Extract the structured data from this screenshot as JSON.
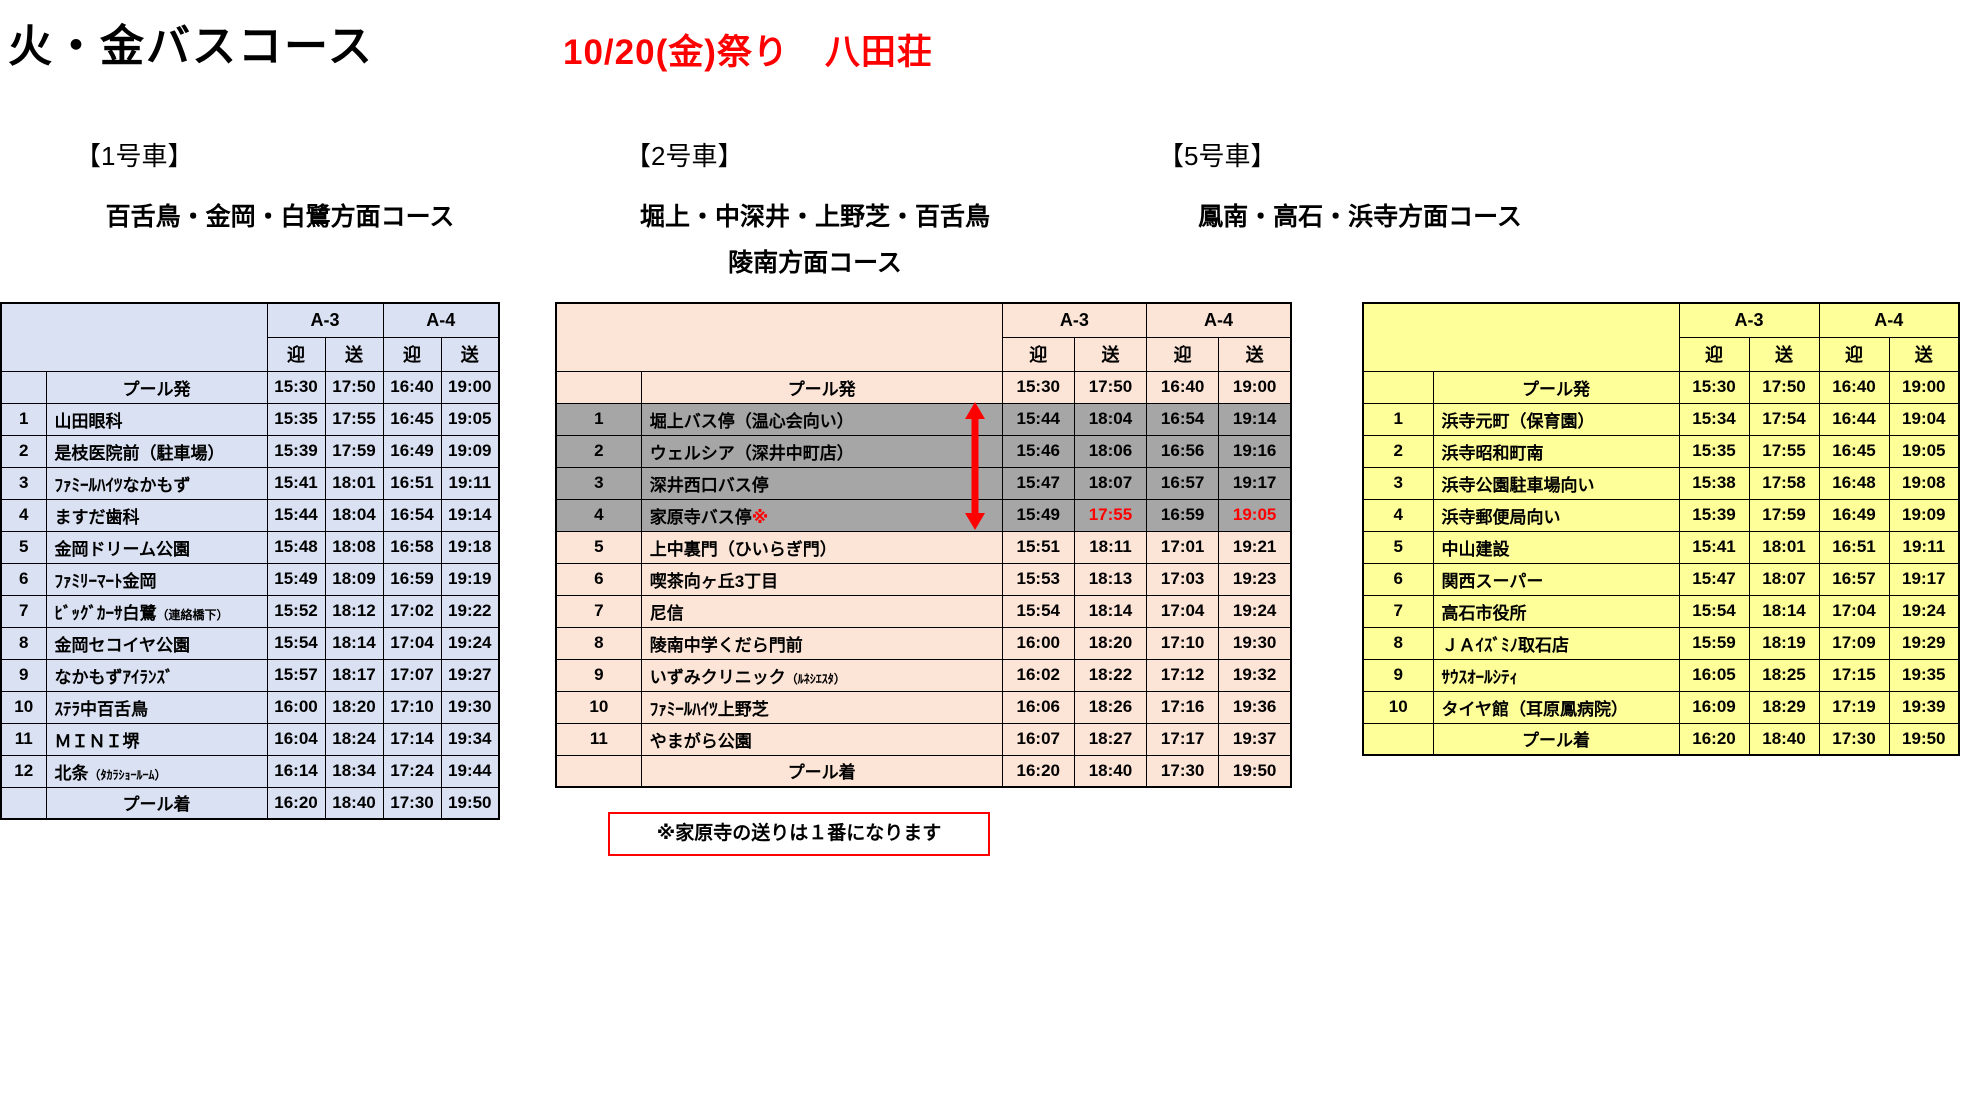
{
  "page": {
    "title": "火・金バスコース",
    "subtitle": "10/20(金)祭り　八田荘"
  },
  "colors": {
    "table1_bg": "#D9E1F2",
    "table2_bg": "#FCE4D6",
    "table3_bg": "#FFFF99",
    "gray_row": "#A6A6A6",
    "accent_red": "#FF0000"
  },
  "columns": {
    "a3": "A-3",
    "a4": "A-4",
    "pickup": "迎",
    "dropoff": "送"
  },
  "note": "※家原寺の送りは１番になります",
  "buses": [
    {
      "label": "【1号車】",
      "course": [
        "百舌鳥・金岡・白鷺方面コース"
      ],
      "rows": [
        {
          "no": "",
          "name": "プール発",
          "type": "pool",
          "times": [
            "15:30",
            "17:50",
            "16:40",
            "19:00"
          ]
        },
        {
          "no": "1",
          "name": "山田眼科",
          "times": [
            "15:35",
            "17:55",
            "16:45",
            "19:05"
          ]
        },
        {
          "no": "2",
          "name": "是枝医院前（駐車場）",
          "times": [
            "15:39",
            "17:59",
            "16:49",
            "19:09"
          ]
        },
        {
          "no": "3",
          "name": "ﾌｧﾐｰﾙﾊｲﾂなかもず",
          "times": [
            "15:41",
            "18:01",
            "16:51",
            "19:11"
          ]
        },
        {
          "no": "4",
          "name": "ますだ歯科",
          "times": [
            "15:44",
            "18:04",
            "16:54",
            "19:14"
          ]
        },
        {
          "no": "5",
          "name": "金岡ドリーム公園",
          "times": [
            "15:48",
            "18:08",
            "16:58",
            "19:18"
          ]
        },
        {
          "no": "6",
          "name": "ﾌｧﾐﾘｰﾏｰﾄ金岡",
          "times": [
            "15:49",
            "18:09",
            "16:59",
            "19:19"
          ]
        },
        {
          "no": "7",
          "name": "ﾋﾞｯｸﾞｶｰｻ白鷺",
          "small": "（連絡橋下）",
          "times": [
            "15:52",
            "18:12",
            "17:02",
            "19:22"
          ]
        },
        {
          "no": "8",
          "name": "金岡セコイヤ公園",
          "times": [
            "15:54",
            "18:14",
            "17:04",
            "19:24"
          ]
        },
        {
          "no": "9",
          "name": "なかもずｱｲﾗﾝｽﾞ",
          "times": [
            "15:57",
            "18:17",
            "17:07",
            "19:27"
          ]
        },
        {
          "no": "10",
          "name": "ｽﾃﾗ中百舌鳥",
          "times": [
            "16:00",
            "18:20",
            "17:10",
            "19:30"
          ]
        },
        {
          "no": "11",
          "name": "ＭＩＮＩ堺",
          "times": [
            "16:04",
            "18:24",
            "17:14",
            "19:34"
          ]
        },
        {
          "no": "12",
          "name": "北条",
          "small": "（ﾀｶﾗｼｮｰﾙｰﾑ）",
          "times": [
            "16:14",
            "18:34",
            "17:24",
            "19:44"
          ]
        },
        {
          "no": "",
          "name": "プール着",
          "type": "pool",
          "times": [
            "16:20",
            "18:40",
            "17:30",
            "19:50"
          ]
        }
      ]
    },
    {
      "label": "【2号車】",
      "course": [
        "堀上・中深井・上野芝・百舌鳥",
        "陵南方面コース"
      ],
      "rows": [
        {
          "no": "",
          "name": "プール発",
          "type": "pool",
          "times": [
            "15:30",
            "17:50",
            "16:40",
            "19:00"
          ]
        },
        {
          "no": "1",
          "name": "堀上バス停（温心会向い）",
          "gray": true,
          "times": [
            "15:44",
            "18:04",
            "16:54",
            "19:14"
          ]
        },
        {
          "no": "2",
          "name": "ウェルシア（深井中町店）",
          "gray": true,
          "times": [
            "15:46",
            "18:06",
            "16:56",
            "19:16"
          ]
        },
        {
          "no": "3",
          "name": "深井西口バス停",
          "gray": true,
          "times": [
            "15:47",
            "18:07",
            "16:57",
            "19:17"
          ]
        },
        {
          "no": "4",
          "name": "家原寺バス停",
          "mark": "※",
          "gray": true,
          "times": [
            "15:49",
            "17:55",
            "16:59",
            "19:05"
          ],
          "red_times": [
            1,
            3
          ]
        },
        {
          "no": "5",
          "name": "上中裏門（ひいらぎ門）",
          "times": [
            "15:51",
            "18:11",
            "17:01",
            "19:21"
          ]
        },
        {
          "no": "6",
          "name": "喫茶向ヶ丘3丁目",
          "times": [
            "15:53",
            "18:13",
            "17:03",
            "19:23"
          ]
        },
        {
          "no": "7",
          "name": "尼信",
          "times": [
            "15:54",
            "18:14",
            "17:04",
            "19:24"
          ]
        },
        {
          "no": "8",
          "name": "陵南中学くだら門前",
          "times": [
            "16:00",
            "18:20",
            "17:10",
            "19:30"
          ]
        },
        {
          "no": "9",
          "name": "いずみクリニック",
          "small": "（ﾙﾈｼｴｽﾀ）",
          "times": [
            "16:02",
            "18:22",
            "17:12",
            "19:32"
          ]
        },
        {
          "no": "10",
          "name": "ﾌｧﾐｰﾙﾊｲﾂ上野芝",
          "times": [
            "16:06",
            "18:26",
            "17:16",
            "19:36"
          ]
        },
        {
          "no": "11",
          "name": "やまがら公園",
          "times": [
            "16:07",
            "18:27",
            "17:17",
            "19:37"
          ]
        },
        {
          "no": "",
          "name": "プール着",
          "type": "pool",
          "times": [
            "16:20",
            "18:40",
            "17:30",
            "19:50"
          ]
        }
      ]
    },
    {
      "label": "【5号車】",
      "course": [
        "鳳南・高石・浜寺方面コース"
      ],
      "rows": [
        {
          "no": "",
          "name": "プール発",
          "type": "pool",
          "times": [
            "15:30",
            "17:50",
            "16:40",
            "19:00"
          ]
        },
        {
          "no": "1",
          "name": "浜寺元町（保育園）",
          "times": [
            "15:34",
            "17:54",
            "16:44",
            "19:04"
          ]
        },
        {
          "no": "2",
          "name": "浜寺昭和町南",
          "times": [
            "15:35",
            "17:55",
            "16:45",
            "19:05"
          ]
        },
        {
          "no": "3",
          "name": "浜寺公園駐車場向い",
          "times": [
            "15:38",
            "17:58",
            "16:48",
            "19:08"
          ]
        },
        {
          "no": "4",
          "name": "浜寺郵便局向い",
          "times": [
            "15:39",
            "17:59",
            "16:49",
            "19:09"
          ]
        },
        {
          "no": "5",
          "name": "中山建設",
          "times": [
            "15:41",
            "18:01",
            "16:51",
            "19:11"
          ]
        },
        {
          "no": "6",
          "name": "関西スーパー",
          "times": [
            "15:47",
            "18:07",
            "16:57",
            "19:17"
          ]
        },
        {
          "no": "7",
          "name": "高石市役所",
          "times": [
            "15:54",
            "18:14",
            "17:04",
            "19:24"
          ]
        },
        {
          "no": "8",
          "name": "ＪＡｲｽﾞﾐﾉ取石店",
          "times": [
            "15:59",
            "18:19",
            "17:09",
            "19:29"
          ]
        },
        {
          "no": "9",
          "name": "ｻｳｽｵｰﾙｼﾃｨ",
          "times": [
            "16:05",
            "18:25",
            "17:15",
            "19:35"
          ]
        },
        {
          "no": "10",
          "name": "タイヤ館（耳原鳳病院）",
          "times": [
            "16:09",
            "18:29",
            "17:19",
            "19:39"
          ]
        },
        {
          "no": "",
          "name": "プール着",
          "type": "pool",
          "times": [
            "16:20",
            "18:40",
            "17:30",
            "19:50"
          ]
        }
      ]
    }
  ]
}
